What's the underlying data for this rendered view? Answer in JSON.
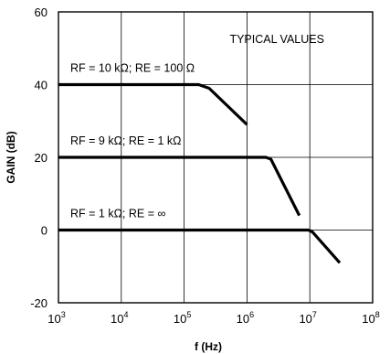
{
  "chart_data": {
    "type": "line",
    "title": "",
    "xlabel": "f (Hz)",
    "ylabel": "GAIN (dB)",
    "x_scale": "log",
    "xlim": [
      1000,
      100000000
    ],
    "ylim": [
      -20,
      60
    ],
    "grid": true,
    "x_ticks": [
      {
        "base": "10",
        "exp": "3",
        "value": 1000
      },
      {
        "base": "10",
        "exp": "4",
        "value": 10000
      },
      {
        "base": "10",
        "exp": "5",
        "value": 100000
      },
      {
        "base": "10",
        "exp": "6",
        "value": 1000000
      },
      {
        "base": "10",
        "exp": "7",
        "value": 10000000
      },
      {
        "base": "10",
        "exp": "8",
        "value": 100000000
      }
    ],
    "y_ticks": [
      "-20",
      "0",
      "20",
      "40",
      "60"
    ],
    "annotation": "TYPICAL VALUES",
    "series": [
      {
        "label": "RF = 10 kΩ; RE = 100 Ω",
        "points": [
          [
            1000,
            40
          ],
          [
            170000,
            40
          ],
          [
            250000,
            39
          ],
          [
            1000000,
            29
          ]
        ]
      },
      {
        "label": "RF = 9 kΩ; RE = 1 kΩ",
        "points": [
          [
            1000,
            20
          ],
          [
            2000000,
            20
          ],
          [
            2400000,
            19.5
          ],
          [
            6800000,
            4
          ]
        ]
      },
      {
        "label": "RF = 1 kΩ; RE = ∞",
        "points": [
          [
            1000,
            0
          ],
          [
            9500000,
            0
          ],
          [
            11000000,
            -0.5
          ],
          [
            30000000,
            -9
          ]
        ]
      }
    ]
  }
}
